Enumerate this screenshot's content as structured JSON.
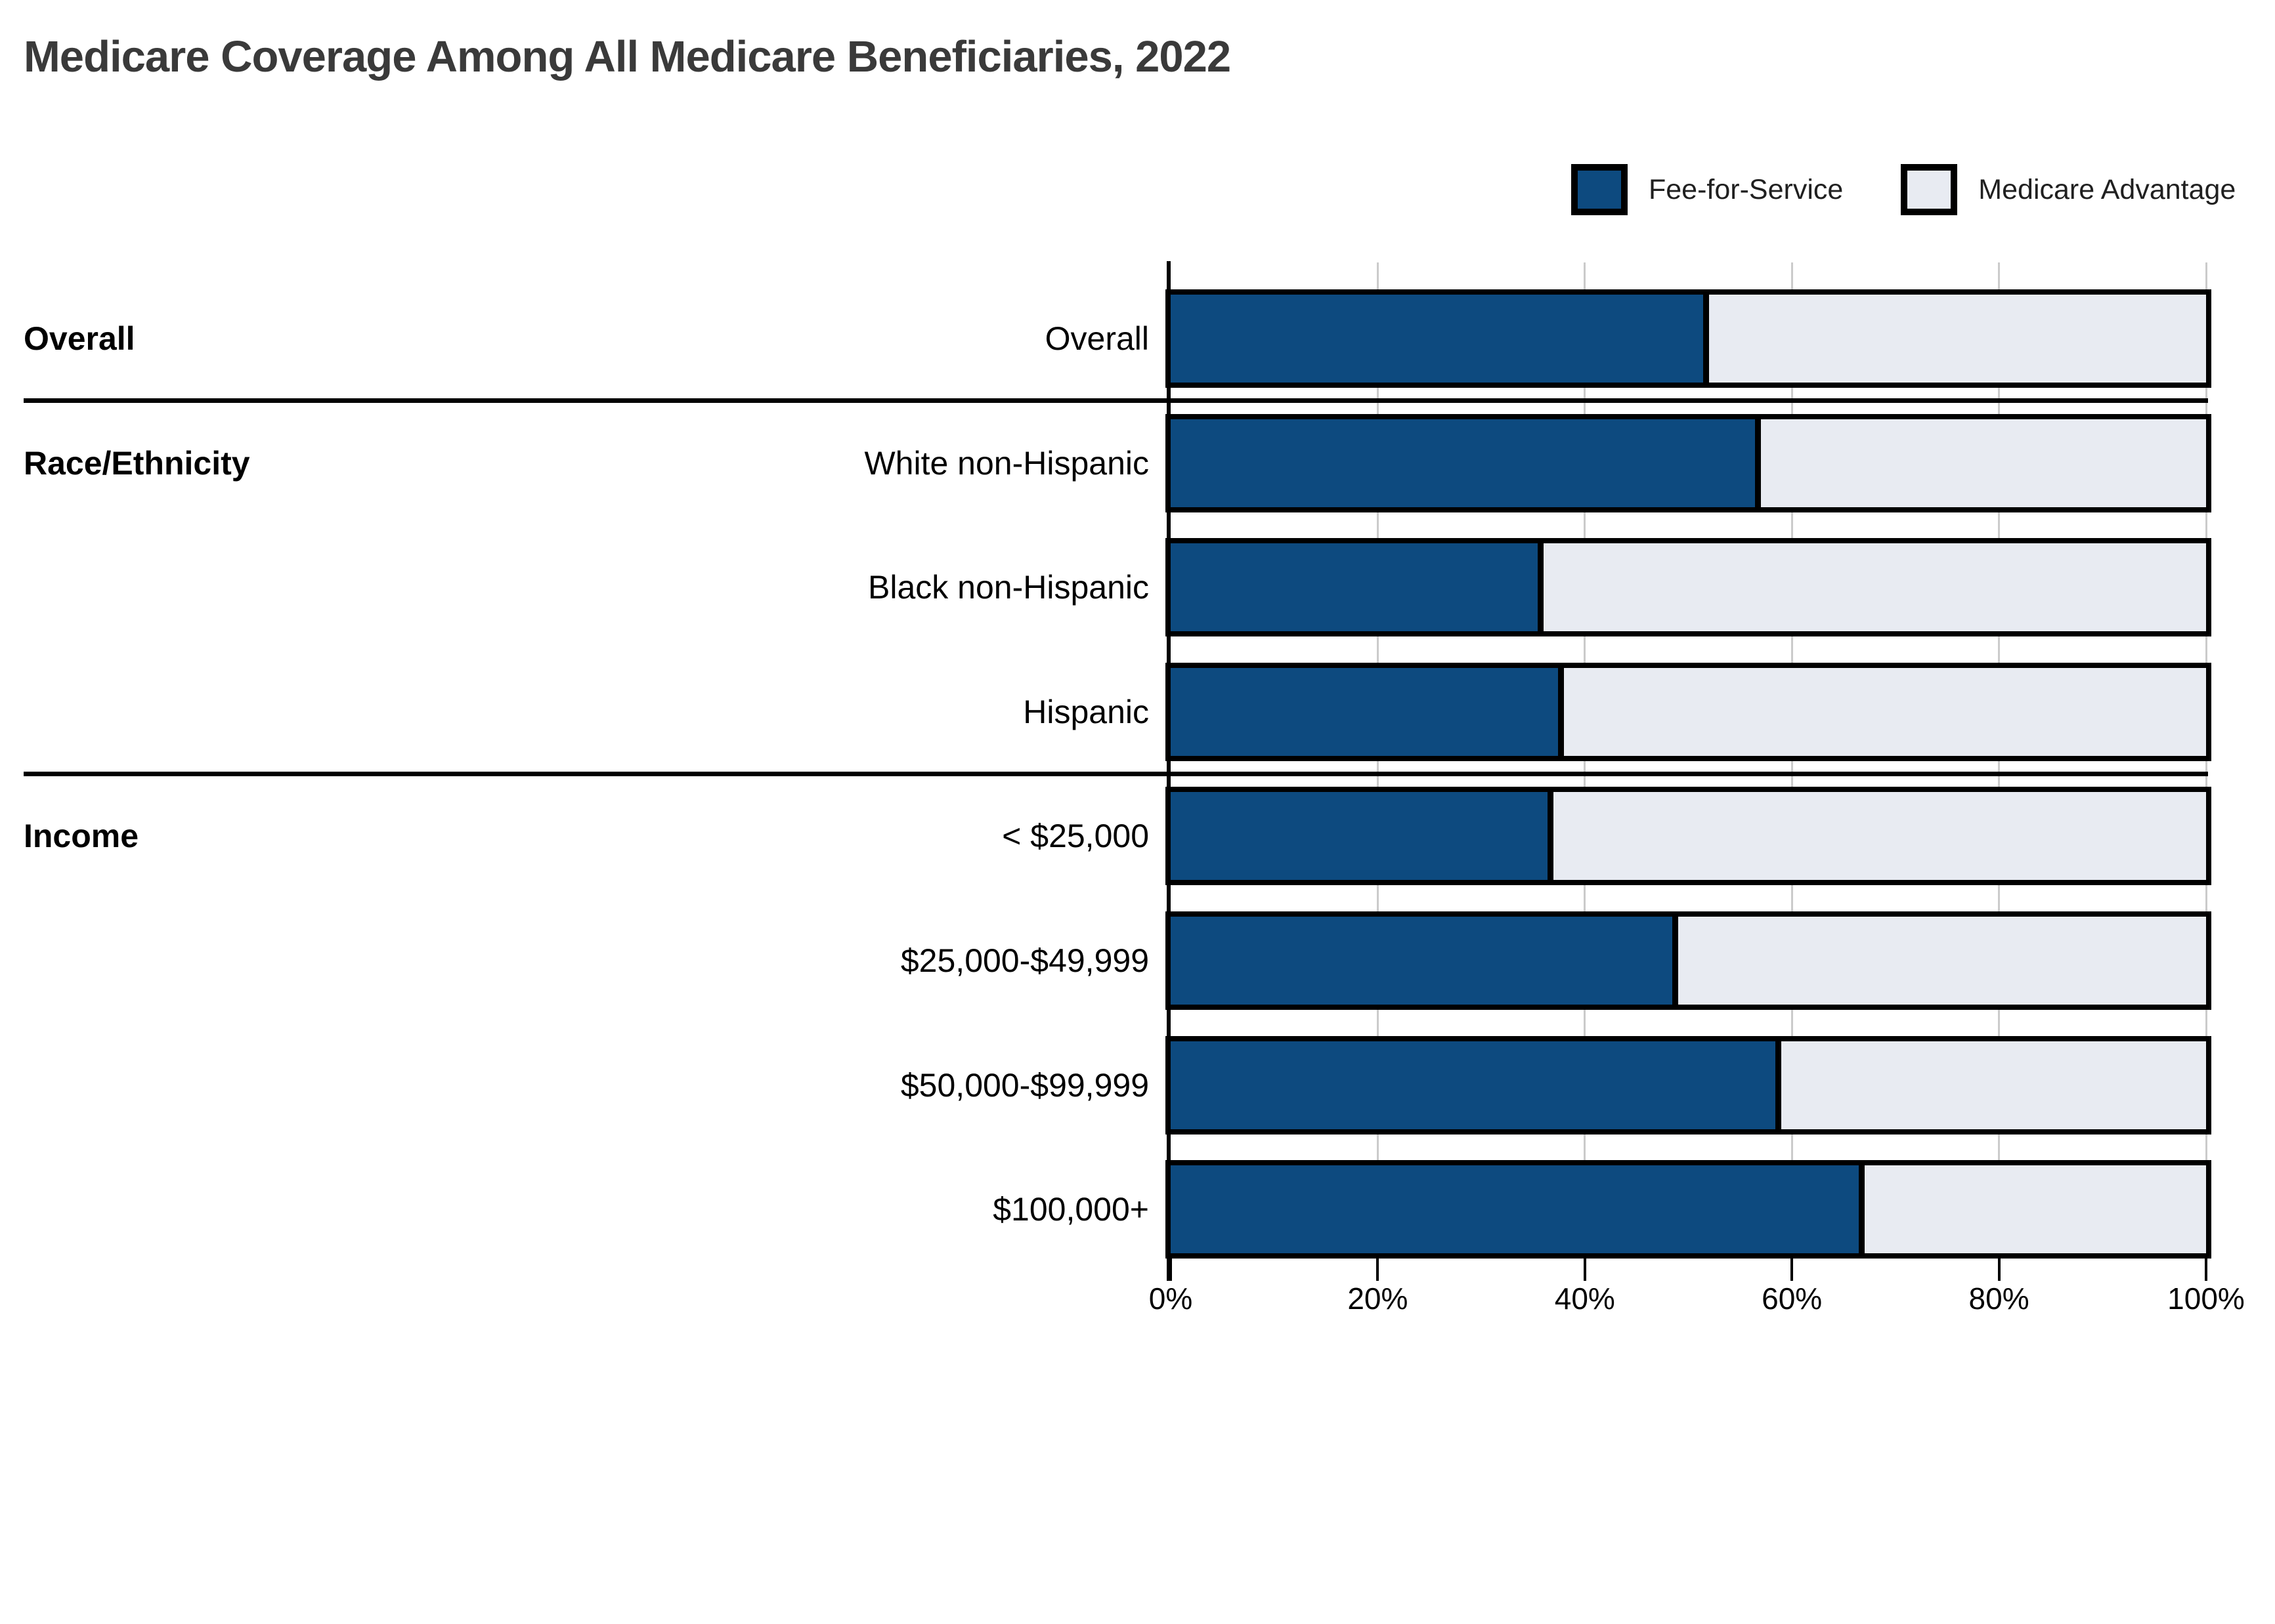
{
  "title": "Medicare Coverage Among All Medicare Beneficiaries, 2022",
  "legend": {
    "items": [
      {
        "label": "Fee-for-Service",
        "color": "#0d4a7f"
      },
      {
        "label": "Medicare Advantage",
        "color": "#e8ebf2"
      }
    ]
  },
  "axis": {
    "tick_labels": [
      "0%",
      "20%",
      "40%",
      "60%",
      "80%",
      "100%"
    ],
    "tick_values": [
      0,
      20,
      40,
      60,
      80,
      100
    ],
    "max": 100
  },
  "groups": [
    {
      "header": "Overall",
      "rows": [
        {
          "label": "Overall",
          "ffs": 52,
          "ma": 48
        }
      ]
    },
    {
      "header": "Race/Ethnicity",
      "rows": [
        {
          "label": "White non-Hispanic",
          "ffs": 57,
          "ma": 43
        },
        {
          "label": "Black non-Hispanic",
          "ffs": 36,
          "ma": 64
        },
        {
          "label": "Hispanic",
          "ffs": 38,
          "ma": 62
        }
      ]
    },
    {
      "header": "Income",
      "rows": [
        {
          "label": "< $25,000",
          "ffs": 37,
          "ma": 63
        },
        {
          "label": "$25,000-$49,999",
          "ffs": 49,
          "ma": 51
        },
        {
          "label": "$50,000-$99,999",
          "ffs": 59,
          "ma": 41
        },
        {
          "label": "$100,000+",
          "ffs": 67,
          "ma": 33
        }
      ]
    }
  ],
  "colors": {
    "ffs": "#0d4a7f",
    "ma": "#e8ebf2",
    "border": "#000000",
    "grid": "#cbcbcb",
    "title": "#3a3a3a",
    "text": "#000000",
    "legend_text": "#202020",
    "background": "#ffffff"
  },
  "chart_data": {
    "type": "bar",
    "orientation": "horizontal",
    "stacked": true,
    "title": "Medicare Coverage Among All Medicare Beneficiaries, 2022",
    "categories": [
      "Overall",
      "White non-Hispanic",
      "Black non-Hispanic",
      "Hispanic",
      "< $25,000",
      "$25,000-$49,999",
      "$50,000-$99,999",
      "$100,000+"
    ],
    "category_groups": [
      "Overall",
      "Race/Ethnicity",
      "Race/Ethnicity",
      "Race/Ethnicity",
      "Income",
      "Income",
      "Income",
      "Income"
    ],
    "series": [
      {
        "name": "Fee-for-Service",
        "values": [
          52,
          57,
          36,
          38,
          37,
          49,
          59,
          67
        ]
      },
      {
        "name": "Medicare Advantage",
        "values": [
          48,
          43,
          64,
          62,
          63,
          51,
          41,
          33
        ]
      }
    ],
    "xlabel": "",
    "ylabel": "",
    "xlim": [
      0,
      100
    ],
    "x_tick_format": "percent",
    "legend_position": "top-right",
    "grid": "vertical",
    "value_labels": false
  }
}
